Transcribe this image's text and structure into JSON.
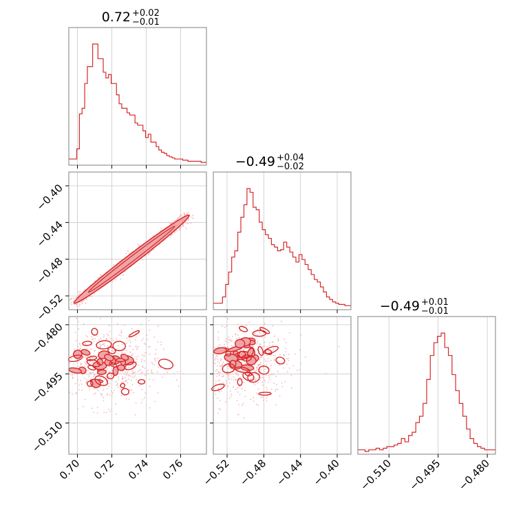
{
  "chart_data": {
    "type": "corner",
    "parameters": [
      {
        "title": {
          "median": "0.72",
          "upper": "+0.02",
          "lower": "−0.01"
        }
      },
      {
        "title": {
          "median": "−0.49",
          "upper": "+0.04",
          "lower": "−0.02"
        }
      },
      {
        "title": {
          "median": "−0.49",
          "upper": "+0.01",
          "lower": "−0.01"
        }
      }
    ],
    "colors": {
      "line": "#d62728",
      "fill": "#f0a5a8",
      "points": "#f4b6b8",
      "grid": "#c8c8c8",
      "frame": "#7f7f7f"
    },
    "axes": {
      "p0": {
        "range": [
          0.695,
          0.775
        ],
        "ticks": [
          0.7,
          0.72,
          0.74,
          0.76
        ],
        "tick_labels": [
          "0.70",
          "0.72",
          "0.74",
          "0.76"
        ]
      },
      "p1": {
        "range": [
          -0.535,
          -0.385
        ],
        "ticks": [
          -0.52,
          -0.48,
          -0.44,
          -0.4
        ],
        "tick_labels": [
          "−0.52",
          "−0.48",
          "−0.44",
          "−0.40"
        ]
      },
      "p2": {
        "range": [
          -0.5195,
          -0.4775
        ],
        "ticks": [
          -0.51,
          -0.495,
          -0.48
        ],
        "tick_labels": [
          "−0.510",
          "−0.495",
          "−0.480"
        ]
      }
    },
    "grid": true,
    "histograms": {
      "p0": {
        "bins": [
          0.695,
          0.775
        ],
        "counts": [
          3,
          3,
          3,
          12,
          43,
          48,
          70,
          85,
          85,
          105,
          105,
          92,
          92,
          80,
          75,
          78,
          70,
          70,
          60,
          52,
          48,
          48,
          44,
          42,
          42,
          35,
          33,
          33,
          28,
          22,
          25,
          18,
          18,
          14,
          11,
          9,
          8,
          6,
          5,
          4,
          3,
          3,
          3,
          2,
          2,
          1,
          1,
          1,
          1,
          1,
          0,
          0
        ]
      },
      "p1": {
        "bins": [
          -0.535,
          -0.385
        ],
        "counts": [
          3,
          3,
          3,
          8,
          18,
          28,
          40,
          45,
          60,
          72,
          82,
          95,
          92,
          80,
          78,
          68,
          62,
          58,
          55,
          50,
          48,
          45,
          46,
          52,
          48,
          44,
          40,
          36,
          42,
          38,
          34,
          30,
          26,
          22,
          20,
          16,
          12,
          8,
          6,
          4,
          3,
          2,
          2,
          1,
          1
        ]
      },
      "p2": {
        "bins": [
          -0.5195,
          -0.4775
        ],
        "counts": [
          1,
          1,
          0,
          1,
          1,
          2,
          1,
          2,
          3,
          3,
          4,
          5,
          8,
          6,
          10,
          12,
          18,
          22,
          30,
          45,
          60,
          68,
          72,
          74,
          65,
          60,
          48,
          38,
          30,
          22,
          14,
          8,
          5,
          3,
          2,
          1,
          1,
          1
        ]
      }
    },
    "samples_p0_p1": {
      "x_start": 0.698,
      "x_end": 0.765,
      "y_start": -0.528,
      "y_end": -0.432
    },
    "samples_p0_p2": {
      "x_center": 0.717,
      "y_center": -0.491
    },
    "samples_p1_p2": {
      "x_center": -0.505,
      "y_center": -0.49
    }
  }
}
